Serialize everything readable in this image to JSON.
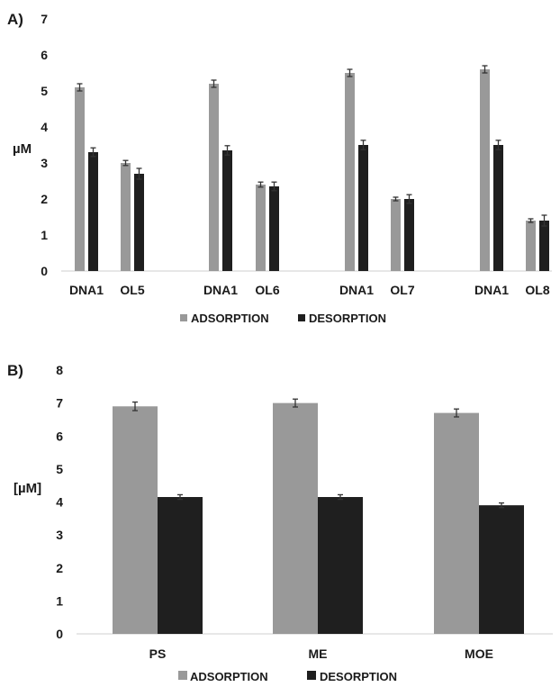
{
  "chart_data": [
    {
      "type": "bar",
      "panel_label": "A)",
      "ylabel": "µM",
      "ylim": [
        0,
        7
      ],
      "y_ticks": [
        0,
        1,
        2,
        3,
        4,
        5,
        6,
        7
      ],
      "categories": [
        "DNA1",
        "OL5",
        "DNA1",
        "OL6",
        "DNA1",
        "OL7",
        "DNA1",
        "OL8"
      ],
      "category_groups": [
        [
          0,
          1
        ],
        [
          2,
          3
        ],
        [
          4,
          5
        ],
        [
          6,
          7
        ]
      ],
      "series": [
        {
          "name": "ADSORPTION",
          "color": "#999999",
          "values": [
            5.1,
            3.0,
            5.2,
            2.4,
            5.5,
            2.0,
            5.6,
            1.4
          ],
          "errors": [
            0.1,
            0.07,
            0.1,
            0.07,
            0.1,
            0.05,
            0.1,
            0.05
          ]
        },
        {
          "name": "DESORPTION",
          "color": "#1f1f1f",
          "values": [
            3.3,
            2.7,
            3.35,
            2.35,
            3.5,
            2.0,
            3.5,
            1.4
          ],
          "errors": [
            0.12,
            0.15,
            0.13,
            0.12,
            0.13,
            0.12,
            0.13,
            0.15
          ]
        }
      ],
      "legend_position": "bottom",
      "grid": false
    },
    {
      "type": "bar",
      "panel_label": "B)",
      "ylabel": "[µM]",
      "ylim": [
        0,
        8
      ],
      "y_ticks": [
        0,
        1,
        2,
        3,
        4,
        5,
        6,
        7,
        8
      ],
      "categories": [
        "PS",
        "ME",
        "MOE"
      ],
      "series": [
        {
          "name": "ADSORPTION",
          "color": "#999999",
          "values": [
            6.9,
            7.0,
            6.7
          ],
          "errors": [
            0.13,
            0.12,
            0.12
          ]
        },
        {
          "name": "DESORPTION",
          "color": "#1f1f1f",
          "values": [
            4.15,
            4.15,
            3.9
          ],
          "errors": [
            0.07,
            0.07,
            0.07
          ]
        }
      ],
      "legend_position": "bottom",
      "grid": false
    }
  ]
}
